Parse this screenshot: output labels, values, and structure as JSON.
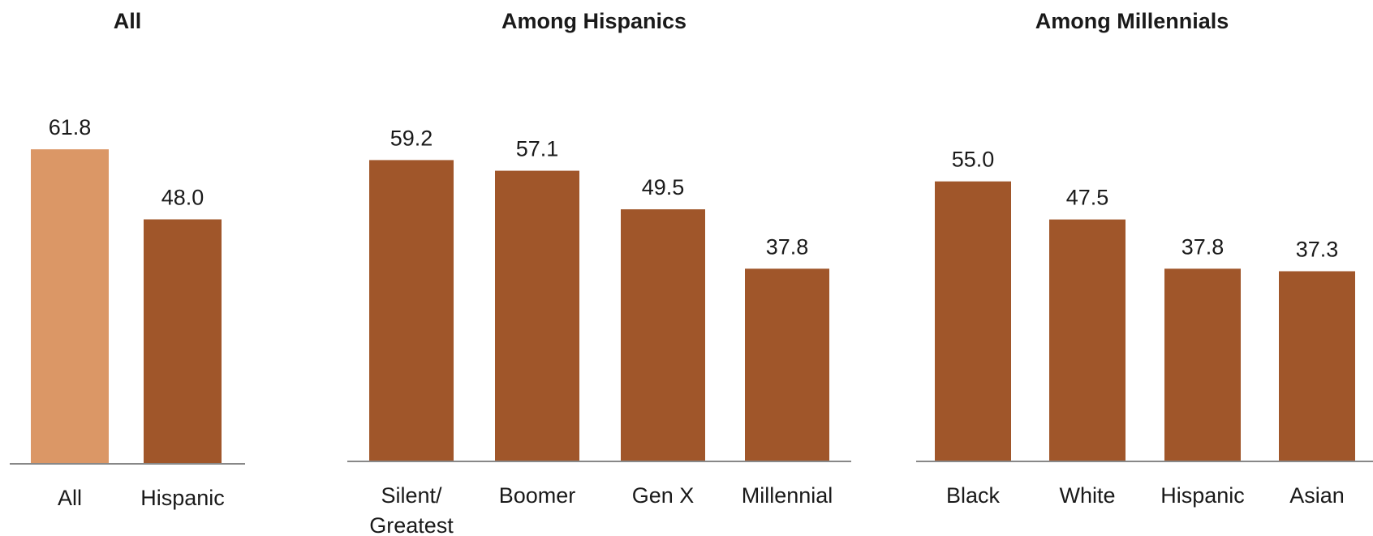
{
  "colors": {
    "bar": "#a0562a",
    "bar_highlight": "#db9766",
    "axis": "#888888"
  },
  "chart_data": [
    {
      "type": "bar",
      "title": "All",
      "categories": [
        "All",
        "Hispanic"
      ],
      "values": [
        61.8,
        48.0
      ],
      "labels": [
        "61.8",
        "48.0"
      ],
      "highlight": [
        true,
        false
      ]
    },
    {
      "type": "bar",
      "title": "Among Hispanics",
      "categories": [
        "Silent/ Greatest",
        "Boomer",
        "Gen X",
        "Millennial"
      ],
      "values": [
        59.2,
        57.1,
        49.5,
        37.8
      ],
      "labels": [
        "59.2",
        "57.1",
        "49.5",
        "37.8"
      ],
      "highlight": [
        false,
        false,
        false,
        false
      ]
    },
    {
      "type": "bar",
      "title": "Among Millennials",
      "categories": [
        "Black",
        "White",
        "Hispanic",
        "Asian"
      ],
      "values": [
        55.0,
        47.5,
        37.8,
        37.3
      ],
      "labels": [
        "55.0",
        "47.5",
        "37.8",
        "37.3"
      ],
      "highlight": [
        false,
        false,
        false,
        false
      ]
    }
  ]
}
